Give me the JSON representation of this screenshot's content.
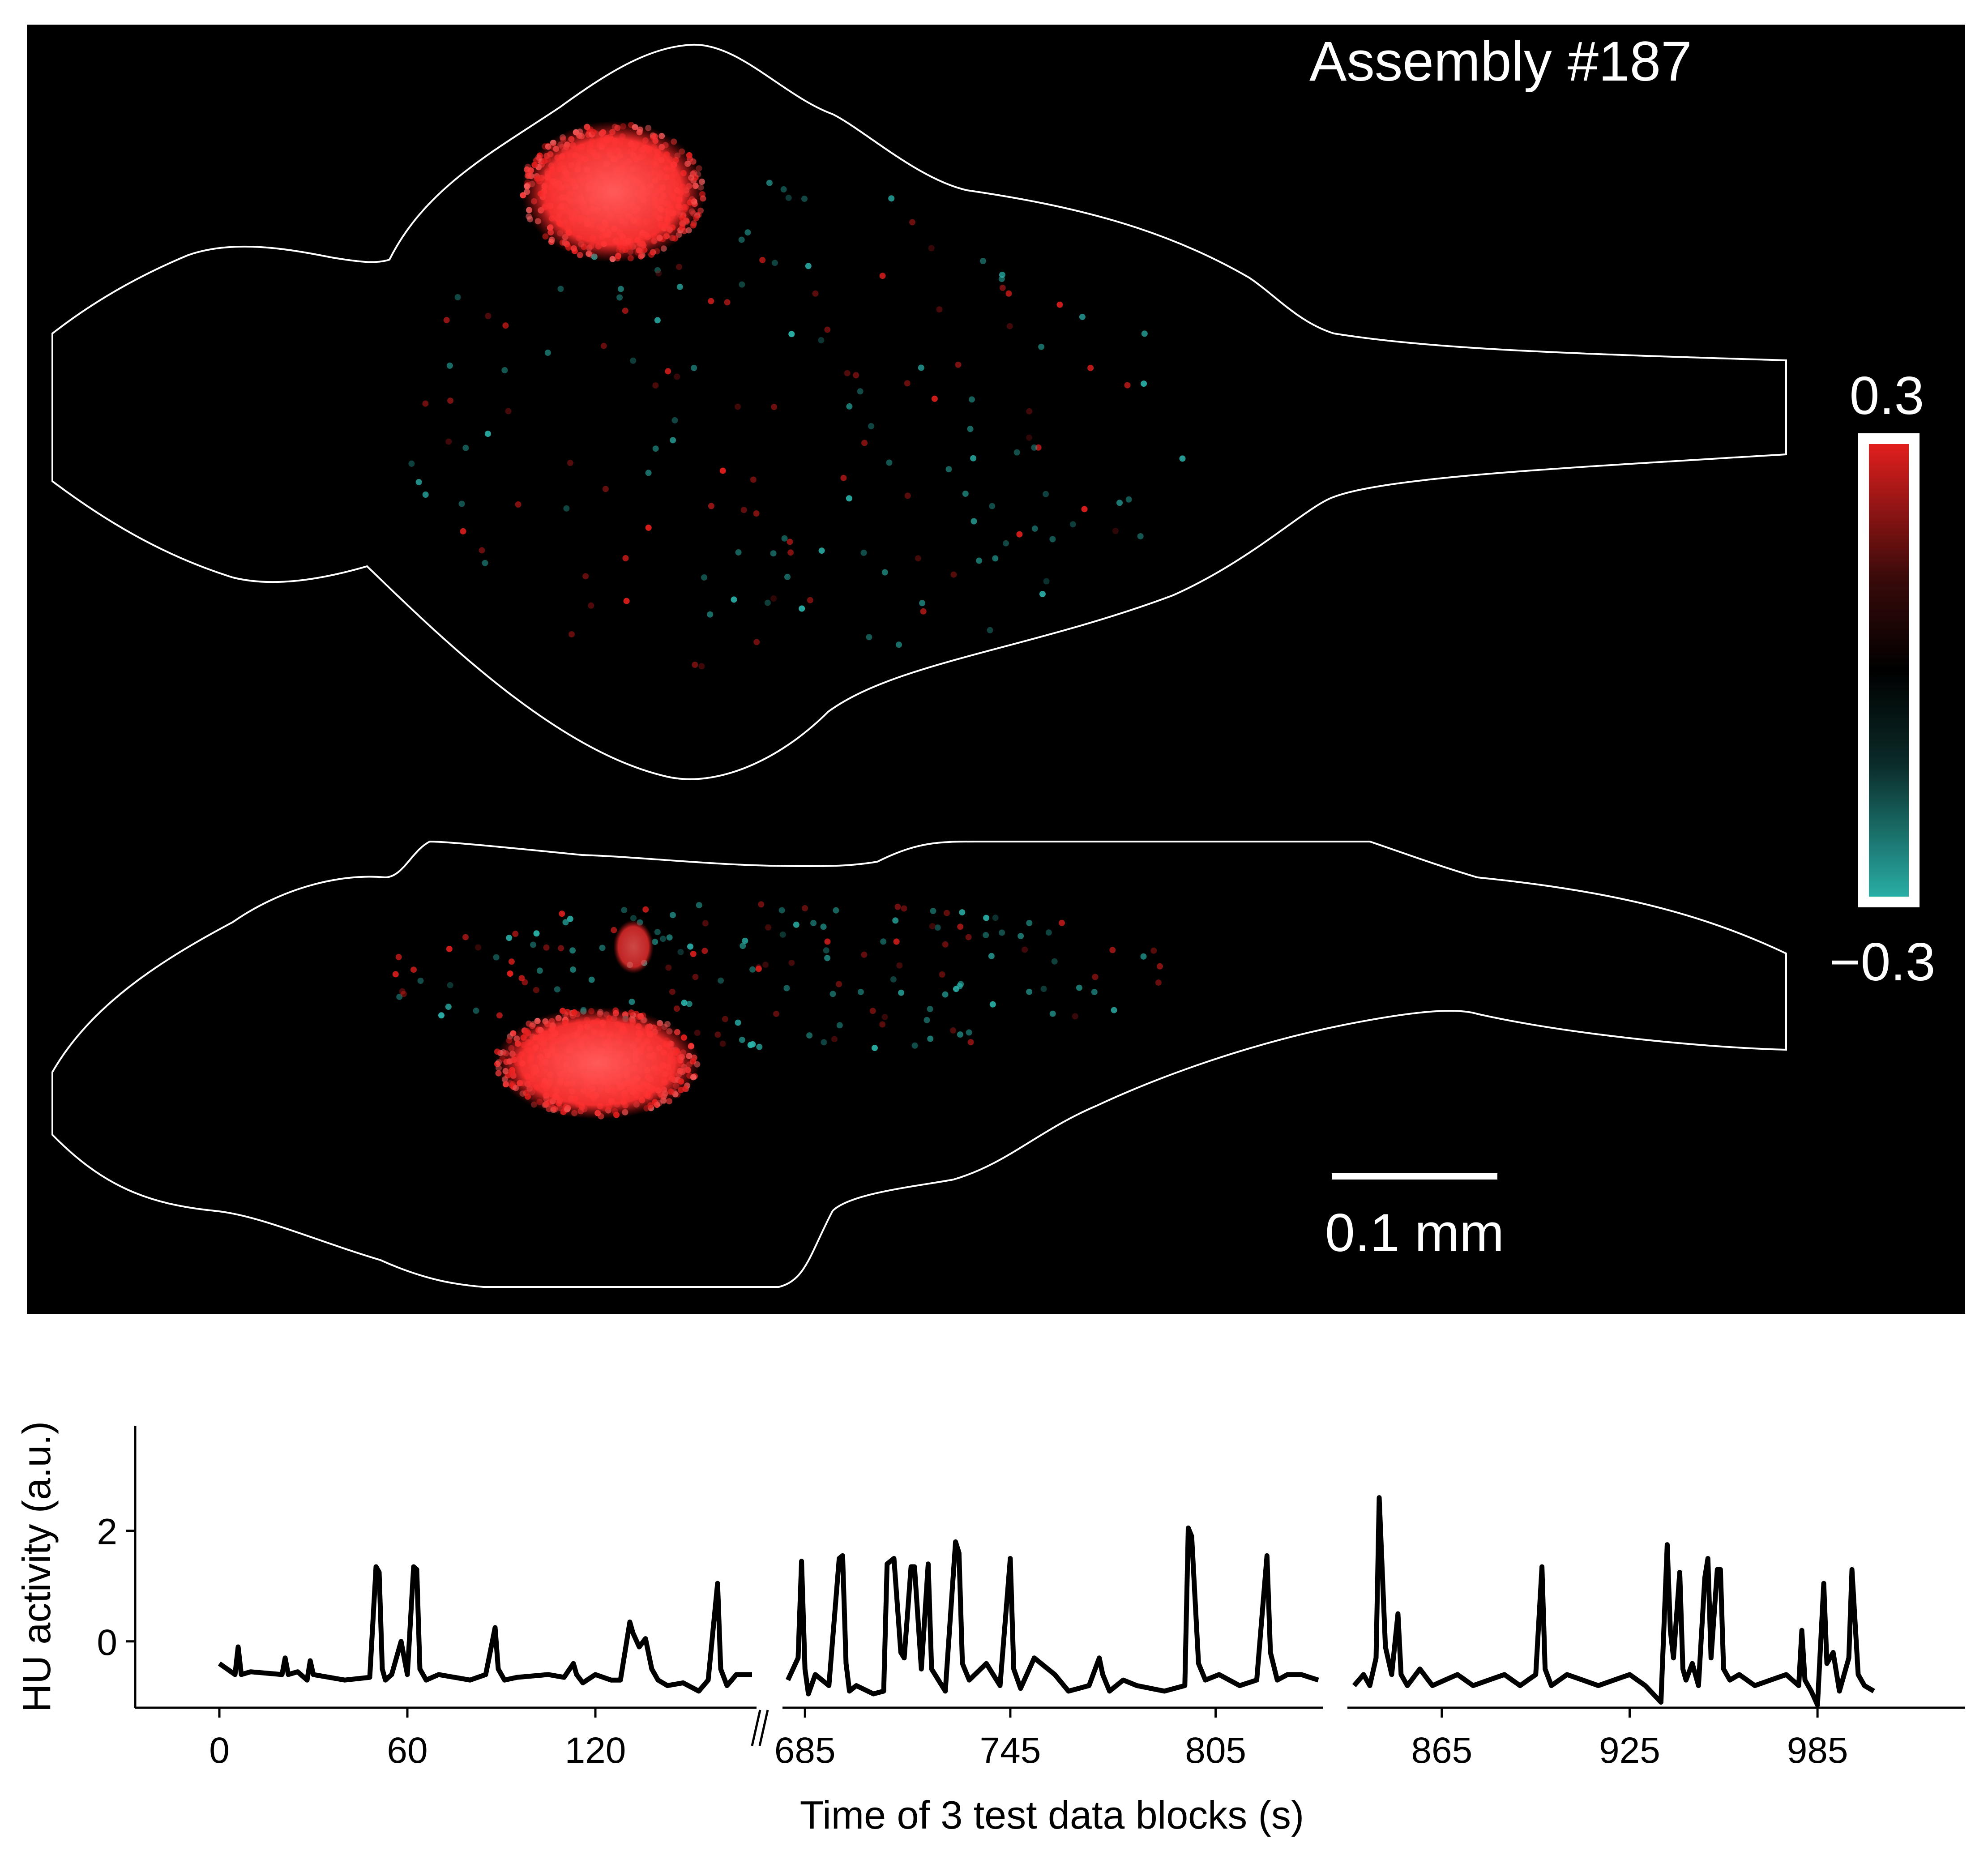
{
  "brain_map": {
    "title": "Assembly #187",
    "scale_bar_label": "0.1 mm",
    "colorbar": {
      "max_label": "0.3",
      "min_label": "−0.3",
      "positive_color": "#e8201e",
      "negative_color": "#2ab3aa",
      "background": "#000000"
    }
  },
  "chart_data": {
    "type": "line",
    "ylabel": "HU activity (a.u.)",
    "xlabel": "Time of 3 test data blocks (s)",
    "ylim": [
      -1.2,
      3.9
    ],
    "yticks": [
      2,
      0
    ],
    "ytick_labels": [
      "2",
      "0"
    ],
    "line_color": "#000000",
    "break_marker": "//",
    "segments": [
      {
        "xlim": [
          0,
          170
        ],
        "xticks": [
          0,
          60,
          120
        ],
        "xtick_labels": [
          "0",
          "60",
          "120"
        ],
        "x": [
          0,
          5,
          6,
          7,
          10,
          20,
          21,
          22,
          25,
          28,
          29,
          30,
          40,
          48,
          50,
          51,
          52,
          53,
          55,
          58,
          60,
          62,
          63,
          64,
          66,
          70,
          80,
          85,
          88,
          89,
          91,
          95,
          105,
          110,
          113,
          114,
          116,
          120,
          125,
          128,
          131,
          132,
          134,
          136,
          138,
          140,
          143,
          148,
          153,
          156,
          159,
          160,
          162,
          165,
          170
        ],
        "y": [
          -0.4,
          -0.6,
          -0.1,
          -0.6,
          -0.55,
          -0.6,
          -0.3,
          -0.6,
          -0.55,
          -0.7,
          -0.35,
          -0.6,
          -0.7,
          -0.65,
          1.35,
          1.25,
          -0.5,
          -0.7,
          -0.6,
          0.0,
          -0.6,
          1.35,
          1.3,
          -0.5,
          -0.7,
          -0.6,
          -0.7,
          -0.6,
          0.25,
          -0.5,
          -0.7,
          -0.65,
          -0.6,
          -0.65,
          -0.4,
          -0.6,
          -0.75,
          -0.6,
          -0.7,
          -0.7,
          0.35,
          0.15,
          -0.1,
          0.05,
          -0.5,
          -0.7,
          -0.8,
          -0.75,
          -0.9,
          -0.7,
          1.05,
          -0.5,
          -0.8,
          -0.6,
          -0.6
        ]
      },
      {
        "xlim": [
          680,
          835
        ],
        "xticks": [
          685,
          745,
          805
        ],
        "xtick_labels": [
          "685",
          "745",
          "805"
        ],
        "x": [
          680,
          683,
          684,
          685,
          686,
          688,
          692,
          695,
          696,
          697,
          698,
          700,
          705,
          708,
          709,
          711,
          713,
          714,
          716,
          717,
          719,
          721,
          722,
          724,
          726,
          729,
          730,
          731,
          733,
          738,
          742,
          745,
          746,
          748,
          752,
          758,
          762,
          768,
          771,
          772,
          774,
          778,
          782,
          790,
          796,
          797,
          798,
          800,
          802,
          806,
          812,
          817,
          820,
          821,
          823,
          826,
          830,
          835
        ],
        "y": [
          -0.7,
          -0.3,
          1.45,
          -0.5,
          -0.95,
          -0.6,
          -0.8,
          1.5,
          1.55,
          -0.4,
          -0.9,
          -0.8,
          -0.95,
          -0.9,
          1.4,
          1.5,
          -0.2,
          -0.3,
          1.35,
          1.35,
          -0.5,
          1.4,
          -0.5,
          -0.7,
          -0.9,
          1.8,
          1.6,
          -0.4,
          -0.7,
          -0.4,
          -0.8,
          1.5,
          -0.5,
          -0.85,
          -0.3,
          -0.6,
          -0.9,
          -0.8,
          -0.3,
          -0.6,
          -0.9,
          -0.7,
          -0.8,
          -0.9,
          -0.8,
          2.05,
          1.9,
          -0.4,
          -0.7,
          -0.6,
          -0.8,
          -0.7,
          1.55,
          -0.2,
          -0.7,
          -0.6,
          -0.6,
          -0.7
        ]
      },
      {
        "xlim": [
          837,
          1005
        ],
        "xticks": [
          865,
          925,
          985
        ],
        "xtick_labels": [
          "865",
          "925",
          "985"
        ],
        "x": [
          837,
          840,
          842,
          844,
          845,
          847,
          849,
          851,
          852,
          854,
          858,
          862,
          866,
          870,
          875,
          880,
          885,
          890,
          895,
          897,
          898,
          900,
          905,
          910,
          915,
          920,
          925,
          930,
          935,
          937,
          938,
          939,
          941,
          942,
          943,
          945,
          947,
          949,
          950,
          951,
          953,
          954,
          955,
          957,
          960,
          965,
          970,
          975,
          979,
          980,
          981,
          983,
          985,
          987,
          988,
          990,
          992,
          994,
          995,
          996,
          998,
          1000,
          1003
        ],
        "y": [
          -0.8,
          -0.6,
          -0.8,
          -0.3,
          2.6,
          -0.1,
          -0.6,
          0.5,
          -0.6,
          -0.8,
          -0.5,
          -0.8,
          -0.7,
          -0.6,
          -0.8,
          -0.7,
          -0.6,
          -0.8,
          -0.6,
          1.35,
          -0.5,
          -0.8,
          -0.6,
          -0.7,
          -0.8,
          -0.7,
          -0.6,
          -0.8,
          -1.1,
          1.75,
          0.2,
          -0.3,
          1.25,
          -0.5,
          -0.7,
          -0.4,
          -0.8,
          1.15,
          1.5,
          -0.3,
          1.3,
          1.3,
          -0.5,
          -0.7,
          -0.6,
          -0.8,
          -0.7,
          -0.6,
          -0.8,
          0.2,
          -0.7,
          -0.9,
          -1.15,
          1.05,
          -0.4,
          -0.2,
          -0.9,
          -0.5,
          -0.3,
          1.3,
          -0.6,
          -0.8,
          -0.9
        ]
      }
    ]
  }
}
